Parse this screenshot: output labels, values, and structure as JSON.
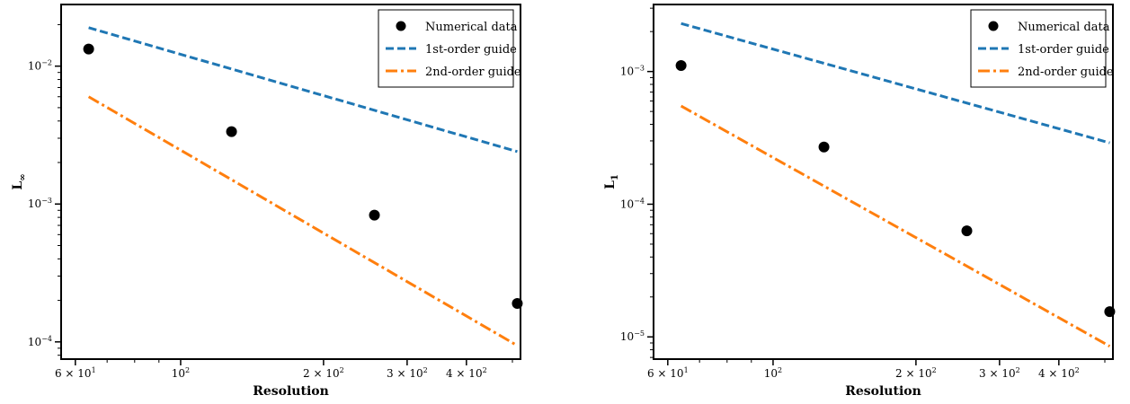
{
  "chart_data": [
    {
      "type": "scatter",
      "xscale": "log",
      "yscale": "log",
      "xlim": [
        56,
        520
      ],
      "ylim": [
        7.5e-05,
        0.028
      ],
      "xlabel": "Resolution",
      "ylabel": "L∞",
      "ylabel_main": "L",
      "ylabel_sub": "∞",
      "xticks_major": [
        {
          "value": 60,
          "mant": "6 × 10",
          "exp": "1"
        },
        {
          "value": 100,
          "mant": "10",
          "exp": "2"
        },
        {
          "value": 200,
          "mant": "2 × 10",
          "exp": "2"
        },
        {
          "value": 300,
          "mant": "3 × 10",
          "exp": "2"
        },
        {
          "value": 400,
          "mant": "4 × 10",
          "exp": "2"
        }
      ],
      "yticks_major": [
        {
          "value": 0.01,
          "mant": "10",
          "exp": "−2"
        },
        {
          "value": 0.001,
          "mant": "10",
          "exp": "−3"
        },
        {
          "value": 0.0001,
          "mant": "10",
          "exp": "−4"
        }
      ],
      "legend_position": "top-right",
      "series": [
        {
          "name": "Numerical data",
          "kind": "points",
          "color": "#000000",
          "x": [
            64,
            128,
            256,
            512
          ],
          "y": [
            0.0133,
            0.00335,
            0.00083,
            0.00019
          ]
        },
        {
          "name": "1st-order guide",
          "kind": "line",
          "style": "dashed",
          "color": "#1f77b4",
          "x": [
            64,
            512
          ],
          "y": [
            0.019,
            0.0024
          ]
        },
        {
          "name": "2nd-order guide",
          "kind": "line",
          "style": "dashdot",
          "color": "#ff7f0e",
          "x": [
            64,
            512
          ],
          "y": [
            0.006,
            9.4e-05
          ]
        }
      ]
    },
    {
      "type": "scatter",
      "xscale": "log",
      "yscale": "log",
      "xlim": [
        56,
        520
      ],
      "ylim": [
        6.8e-06,
        0.0032
      ],
      "xlabel": "Resolution",
      "ylabel": "L1",
      "ylabel_main": "L",
      "ylabel_sub": "1",
      "xticks_major": [
        {
          "value": 60,
          "mant": "6 × 10",
          "exp": "1"
        },
        {
          "value": 100,
          "mant": "10",
          "exp": "2"
        },
        {
          "value": 200,
          "mant": "2 × 10",
          "exp": "2"
        },
        {
          "value": 300,
          "mant": "3 × 10",
          "exp": "2"
        },
        {
          "value": 400,
          "mant": "4 × 10",
          "exp": "2"
        }
      ],
      "yticks_major": [
        {
          "value": 0.001,
          "mant": "10",
          "exp": "−3"
        },
        {
          "value": 0.0001,
          "mant": "10",
          "exp": "−4"
        },
        {
          "value": 1e-05,
          "mant": "10",
          "exp": "−5"
        }
      ],
      "legend_position": "top-right",
      "series": [
        {
          "name": "Numerical data",
          "kind": "points",
          "color": "#000000",
          "x": [
            64,
            128,
            256,
            512
          ],
          "y": [
            0.00111,
            0.00027,
            6.3e-05,
            1.55e-05
          ]
        },
        {
          "name": "1st-order guide",
          "kind": "line",
          "style": "dashed",
          "color": "#1f77b4",
          "x": [
            64,
            512
          ],
          "y": [
            0.0023,
            0.00029
          ]
        },
        {
          "name": "2nd-order guide",
          "kind": "line",
          "style": "dashdot",
          "color": "#ff7f0e",
          "x": [
            64,
            512
          ],
          "y": [
            0.00055,
            8.5e-06
          ]
        }
      ]
    }
  ]
}
